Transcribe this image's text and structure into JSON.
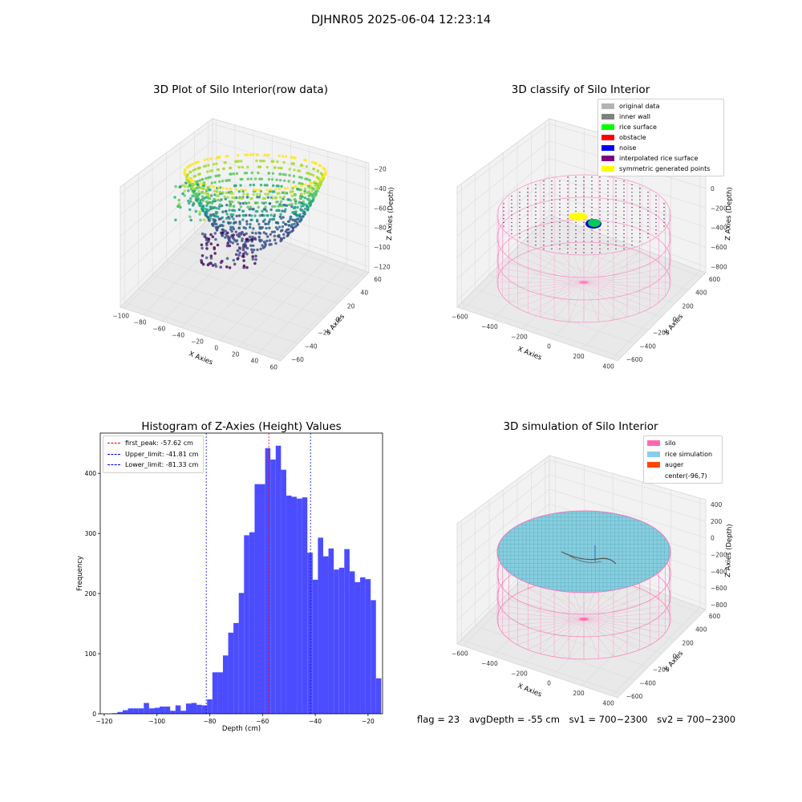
{
  "suptitle": "DJHNR05 2025-06-04 12:23:14",
  "colors": {
    "hist_bar": "#4c4cff",
    "peak_line": "#ff0000",
    "limit_line": "#0000ff",
    "silo_pink": "#ff77bb",
    "rice_blue": "#87cedf",
    "pane": "#f2f2f2",
    "grid": "#dedede"
  },
  "chart_data": [
    {
      "type": "scatter",
      "subtype": "3d",
      "title": "3D Plot of Silo Interior(row data)",
      "xlabel": "X Axies",
      "ylabel": "Y Axies",
      "zlabel": "Z Axies (Depth)",
      "x_ticks": [
        "−100",
        "−80",
        "−60",
        "−40",
        "−20",
        "0",
        "20",
        "40",
        "60"
      ],
      "y_ticks": [
        "−60",
        "−40",
        "−20",
        "0",
        "20",
        "40",
        "60"
      ],
      "z_ticks": [
        "−120",
        "−100",
        "−80",
        "−60",
        "−40",
        "−20"
      ],
      "xlim": [
        -100,
        60
      ],
      "ylim": [
        -60,
        60
      ],
      "zlim": [
        -120,
        -20
      ],
      "colormap": "viridis",
      "shape": "bowl of points, low center ≈ -80 to -110, rim ≈ -20"
    },
    {
      "type": "scatter",
      "subtype": "3d",
      "title": "3D classify of Silo Interior",
      "xlabel": "X Axies",
      "ylabel": "Y Axies",
      "zlabel": "Z Axies (Depth)",
      "x_ticks": [
        "−600",
        "−400",
        "−200",
        "0",
        "200",
        "400"
      ],
      "y_ticks": [
        "−600",
        "−400",
        "−200",
        "0",
        "200",
        "400",
        "600"
      ],
      "z_ticks": [
        "−800",
        "−600",
        "−400",
        "−200",
        "0",
        "200"
      ],
      "legend": [
        {
          "label": "original data",
          "color": "#b3b3b3"
        },
        {
          "label": "inner wall",
          "color": "#808080"
        },
        {
          "label": "rice surface",
          "color": "#00ff00"
        },
        {
          "label": "obstacle",
          "color": "#ff0000"
        },
        {
          "label": "noise",
          "color": "#0000ff"
        },
        {
          "label": "interpolated rice surface",
          "color": "#800080"
        },
        {
          "label": "symmetric generated points",
          "color": "#ffff00"
        }
      ],
      "legend_position": "top-right"
    },
    {
      "type": "bar",
      "subtype": "histogram",
      "title": "Histogram of Z-Axies (Height) Values",
      "xlabel": "Depth (cm)",
      "ylabel": "Frequency",
      "xlim": [
        -121.5,
        -14.5
      ],
      "ylim": [
        0,
        467
      ],
      "x_ticks": [
        -120,
        -100,
        -80,
        -60,
        -40,
        -20
      ],
      "x_tick_labels": [
        "−120",
        "−100",
        "−80",
        "−60",
        "−40",
        "−20"
      ],
      "y_ticks": [
        0,
        100,
        200,
        300,
        400
      ],
      "y_tick_labels": [
        "0",
        "100",
        "200",
        "300",
        "400"
      ],
      "bin_start": -117,
      "bin_width": 2,
      "values": [
        1,
        3,
        6,
        9,
        9,
        9,
        18,
        9,
        10,
        12,
        12,
        5,
        14,
        5,
        17,
        18,
        15,
        14,
        24,
        69,
        69,
        97,
        135,
        151,
        201,
        297,
        302,
        382,
        382,
        442,
        423,
        446,
        406,
        363,
        361,
        358,
        360,
        268,
        223,
        293,
        262,
        275,
        240,
        243,
        274,
        237,
        219,
        227,
        224,
        189,
        59
      ],
      "lines": [
        {
          "label": "first_peak: -57.62 cm",
          "x": -57.62,
          "color": "#ff0000"
        },
        {
          "label": "Upper_limit: -41.81 cm",
          "x": -41.81,
          "color": "#0000ff"
        },
        {
          "label": "Lower_limit: -81.33 cm",
          "x": -81.33,
          "color": "#0000ff"
        }
      ],
      "legend_position": "top-left",
      "grid": false
    },
    {
      "type": "scatter",
      "subtype": "3d",
      "title": "3D simulation of Silo Interior",
      "xlabel": "X Axies",
      "ylabel": "Y Axies",
      "zlabel": "Z Axies (Depth)",
      "x_ticks": [
        "−600",
        "−400",
        "−200",
        "0",
        "200",
        "400"
      ],
      "y_ticks": [
        "−600",
        "−400",
        "−200",
        "0",
        "200",
        "400",
        "600"
      ],
      "z_ticks": [
        "−800",
        "−600",
        "−400",
        "−200",
        "0",
        "200",
        "400"
      ],
      "legend": [
        {
          "label": "silo",
          "color": "#ff69b4"
        },
        {
          "label": "rice simulation",
          "color": "#87ceeb"
        },
        {
          "label": "auger",
          "color": "#ff4500"
        },
        {
          "label": "center(-96,7)",
          "color": ""
        }
      ],
      "legend_position": "top-right"
    }
  ],
  "footer": {
    "flag": "flag = 23",
    "avg_depth": "avgDepth = -55 cm",
    "sv1": "sv1 = 700~2300",
    "sv2": "sv2 = 700~2300"
  }
}
